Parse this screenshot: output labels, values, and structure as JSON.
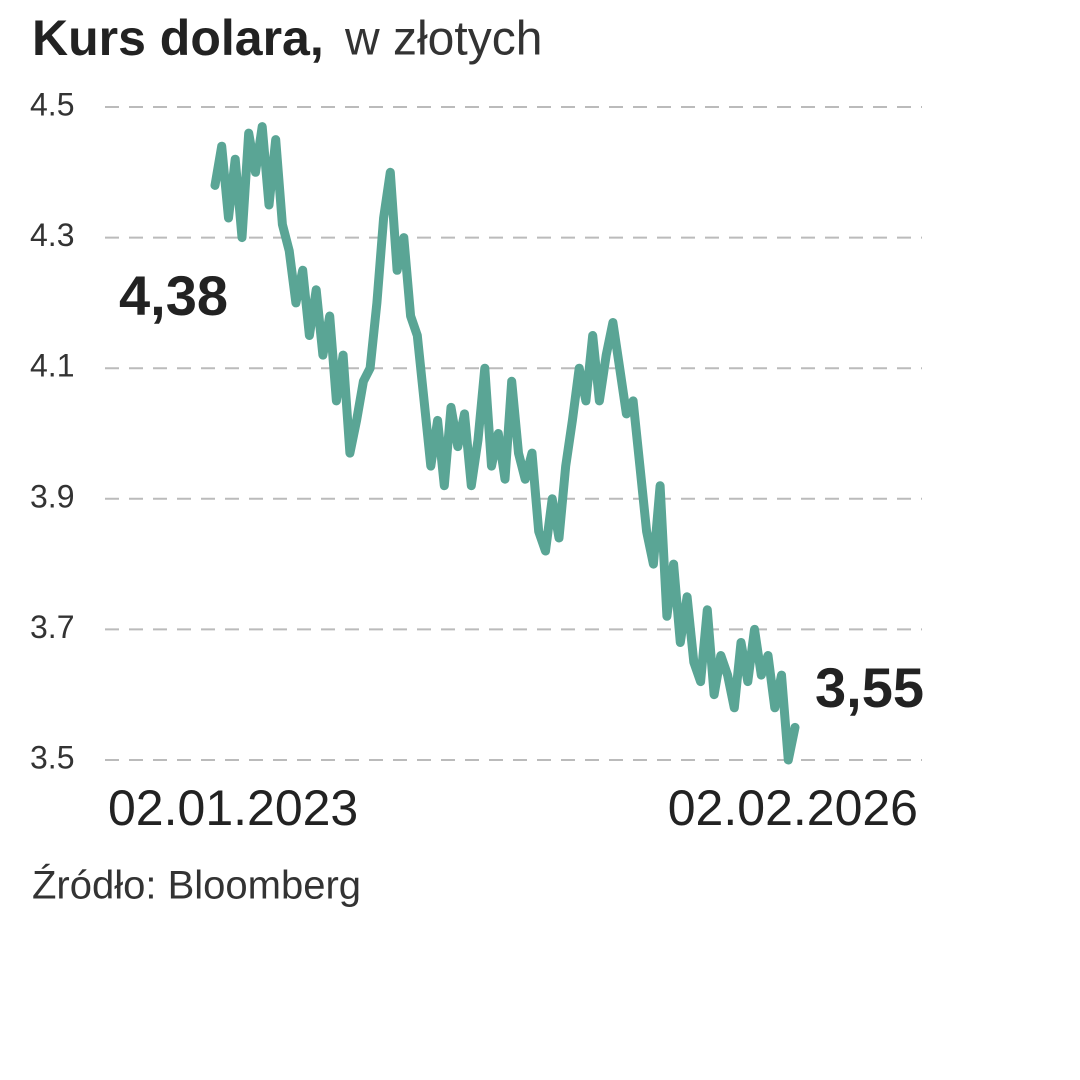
{
  "chart_data": {
    "type": "line",
    "title": "Kurs dolara,",
    "subtitle": "w złotych",
    "source": "Źródło:  Bloomberg",
    "categories": [
      "02.01.2023",
      null,
      null,
      null,
      null,
      null,
      null,
      null,
      null,
      null,
      null,
      null,
      null,
      null,
      null,
      null,
      null,
      null,
      null,
      null,
      null,
      null,
      null,
      null,
      null,
      null,
      null,
      null,
      null,
      null,
      null,
      null,
      null,
      null,
      null,
      null,
      null,
      null,
      null,
      null,
      null,
      null,
      null,
      null,
      null,
      null,
      null,
      null,
      null,
      null,
      null,
      null,
      null,
      null,
      null,
      null,
      null,
      null,
      null,
      null,
      null,
      null,
      null,
      null,
      null,
      null,
      null,
      null,
      null,
      null,
      null,
      null,
      null,
      null,
      null,
      null,
      null,
      null,
      null,
      null,
      null,
      null,
      null,
      null,
      null,
      null,
      "02.02.2026"
    ],
    "series": [
      {
        "color": "#5aa595",
        "values": [
          4.38,
          4.44,
          4.33,
          4.42,
          4.3,
          4.46,
          4.4,
          4.47,
          4.35,
          4.45,
          4.32,
          4.28,
          4.2,
          4.25,
          4.15,
          4.22,
          4.12,
          4.18,
          4.05,
          4.12,
          3.97,
          4.02,
          4.08,
          4.1,
          4.2,
          4.33,
          4.4,
          4.25,
          4.3,
          4.18,
          4.15,
          4.05,
          3.95,
          4.02,
          3.92,
          4.04,
          3.98,
          4.03,
          3.92,
          3.99,
          4.1,
          3.95,
          4.0,
          3.93,
          4.08,
          3.97,
          3.93,
          3.97,
          3.85,
          3.82,
          3.9,
          3.84,
          3.95,
          4.02,
          4.1,
          4.05,
          4.15,
          4.05,
          4.12,
          4.17,
          4.1,
          4.03,
          4.05,
          3.95,
          3.85,
          3.8,
          3.92,
          3.72,
          3.8,
          3.68,
          3.75,
          3.65,
          3.62,
          3.73,
          3.6,
          3.66,
          3.63,
          3.58,
          3.68,
          3.62,
          3.7,
          3.63,
          3.66,
          3.58,
          3.63,
          3.5,
          3.55
        ],
        "value_labels": [
          "4,38",
          null,
          null,
          null,
          null,
          null,
          null,
          null,
          null,
          null,
          null,
          null,
          null,
          null,
          null,
          null,
          null,
          null,
          null,
          null,
          null,
          null,
          null,
          null,
          null,
          null,
          null,
          null,
          null,
          null,
          null,
          null,
          null,
          null,
          null,
          null,
          null,
          null,
          null,
          null,
          null,
          null,
          null,
          null,
          null,
          null,
          null,
          null,
          null,
          null,
          null,
          null,
          null,
          null,
          null,
          null,
          null,
          null,
          null,
          null,
          null,
          null,
          null,
          null,
          null,
          null,
          null,
          null,
          null,
          null,
          null,
          null,
          null,
          null,
          null,
          null,
          null,
          null,
          null,
          null,
          null,
          null,
          null,
          null,
          null,
          null,
          "3,55"
        ]
      }
    ],
    "ylim": [
      3.5,
      4.5
    ],
    "yticks": [
      3.5,
      3.7,
      3.9,
      4.1,
      4.3,
      4.5
    ],
    "grid": true
  }
}
